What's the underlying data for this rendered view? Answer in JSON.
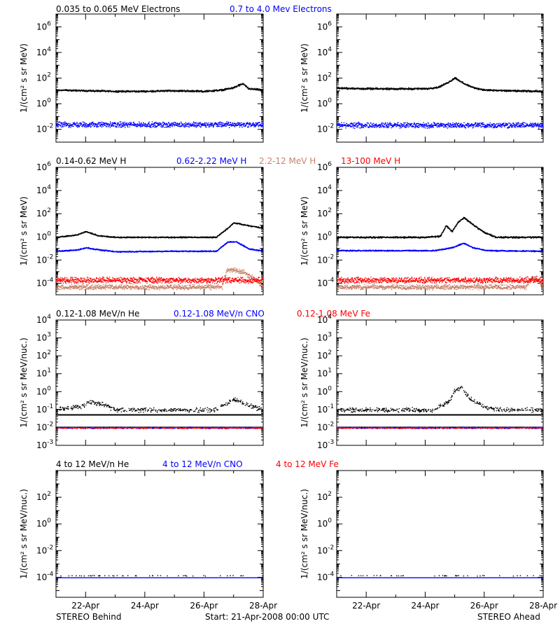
{
  "footer": {
    "left": "STEREO Behind",
    "center": "Start: 21-Apr-2008 00:00 UTC",
    "right": "STEREO Ahead"
  },
  "x_tick_labels": [
    "22-Apr",
    "24-Apr",
    "26-Apr",
    "28-Apr"
  ],
  "row_titles": [
    [
      {
        "text": "0.035 to 0.065 MeV Electrons",
        "color": "#000000"
      },
      {
        "text": "0.7 to 4.0 Mev Electrons",
        "color": "#0000ff"
      }
    ],
    [
      {
        "text": "0.14-0.62 MeV H",
        "color": "#000000"
      },
      {
        "text": "0.62-2.22 MeV H",
        "color": "#0000ff"
      },
      {
        "text": "2.2-12 MeV H",
        "color": "#c8826a"
      },
      {
        "text": "13-100 MeV H",
        "color": "#ff0000"
      }
    ],
    [
      {
        "text": "0.12-1.08 MeV/n He",
        "color": "#000000"
      },
      {
        "text": "0.12-1.08 MeV/n CNO",
        "color": "#0000ff"
      },
      {
        "text": "0.12-1.08 MeV Fe",
        "color": "#ff0000"
      }
    ],
    [
      {
        "text": "4 to 12 MeV/n He",
        "color": "#000000"
      },
      {
        "text": "4 to 12 MeV/n CNO",
        "color": "#0000ff"
      },
      {
        "text": "4 to 12 MeV Fe",
        "color": "#ff0000"
      }
    ]
  ],
  "chart_data": [
    {
      "id": "electrons-behind",
      "type": "scatter",
      "y_scale": "log",
      "ylabel": "1/(cm² s sr MeV)",
      "xlim": [
        "21-Apr-2008",
        "28-Apr-2008"
      ],
      "ylim_exp": [
        -3,
        7
      ],
      "y_tick_exps": [
        -2,
        0,
        2,
        4,
        6
      ],
      "series": [
        {
          "name": "0.035 to 0.065 MeV Electrons",
          "color": "#000000",
          "x": [
            0,
            1,
            2,
            3,
            4,
            5,
            5.6,
            6.0,
            6.3,
            6.5,
            7
          ],
          "log_y": [
            1.1,
            1.05,
            1.0,
            1.0,
            1.05,
            1.0,
            1.1,
            1.3,
            1.6,
            1.2,
            1.1
          ],
          "scatter": 0.08
        },
        {
          "name": "0.7 to 4.0 Mev Electrons",
          "color": "#0000ff",
          "x": [
            0,
            7
          ],
          "log_y": [
            -1.6,
            -1.6
          ],
          "scatter": 0.25
        }
      ]
    },
    {
      "id": "electrons-ahead",
      "type": "scatter",
      "y_scale": "log",
      "ylabel": "1/(cm² s sr MeV)",
      "xlim": [
        "21-Apr-2008",
        "28-Apr-2008"
      ],
      "ylim_exp": [
        -3,
        7
      ],
      "y_tick_exps": [
        -2,
        0,
        2,
        4,
        6
      ],
      "series": [
        {
          "name": "0.035 to 0.065 MeV Electrons",
          "color": "#000000",
          "x": [
            0,
            1,
            2,
            3,
            3.4,
            3.7,
            4.0,
            4.3,
            4.6,
            5.0,
            5.6,
            7
          ],
          "log_y": [
            1.25,
            1.2,
            1.2,
            1.2,
            1.3,
            1.6,
            2.05,
            1.6,
            1.3,
            1.1,
            1.05,
            1.0
          ],
          "scatter": 0.08
        },
        {
          "name": "0.7 to 4.0 Mev Electrons",
          "color": "#0000ff",
          "x": [
            0,
            7
          ],
          "log_y": [
            -1.65,
            -1.65
          ],
          "scatter": 0.25
        }
      ]
    },
    {
      "id": "protons-behind",
      "type": "scatter",
      "y_scale": "log",
      "ylabel": "1/(cm² s sr MeV)",
      "xlim": [
        "21-Apr-2008",
        "28-Apr-2008"
      ],
      "ylim_exp": [
        -5,
        6
      ],
      "y_tick_exps": [
        -4,
        -2,
        0,
        2,
        4,
        6
      ],
      "series": [
        {
          "name": "0.14-0.62 MeV H",
          "color": "#000000",
          "x": [
            0,
            0.7,
            1.0,
            1.4,
            2,
            4,
            5.4,
            5.8,
            6.0,
            6.3,
            6.6,
            7
          ],
          "log_y": [
            0.0,
            0.2,
            0.5,
            0.15,
            0.0,
            0.0,
            0.0,
            0.8,
            1.25,
            1.1,
            0.95,
            0.8
          ],
          "scatter": 0.06
        },
        {
          "name": "0.62-2.22 MeV H",
          "color": "#0000ff",
          "x": [
            0,
            0.7,
            1.0,
            1.5,
            2,
            4,
            5.4,
            5.8,
            6.1,
            6.5,
            7
          ],
          "log_y": [
            -1.2,
            -1.1,
            -0.9,
            -1.1,
            -1.25,
            -1.2,
            -1.2,
            -0.4,
            -0.4,
            -1.0,
            -1.2
          ],
          "scatter": 0.06
        },
        {
          "name": "2.2-12 MeV H",
          "color": "#c8826a",
          "x": [
            0,
            5.6,
            5.75,
            6.0,
            6.3,
            6.7,
            7
          ],
          "log_y": [
            -4.3,
            -4.3,
            -2.9,
            -2.8,
            -3.0,
            -3.6,
            -4.3
          ],
          "scatter": 0.25
        },
        {
          "name": "13-100 MeV H",
          "color": "#ff0000",
          "x": [
            0,
            7
          ],
          "log_y": [
            -3.7,
            -3.7
          ],
          "scatter": 0.3
        }
      ]
    },
    {
      "id": "protons-ahead",
      "type": "scatter",
      "y_scale": "log",
      "ylabel": "1/(cm² s sr MeV)",
      "xlim": [
        "21-Apr-2008",
        "28-Apr-2008"
      ],
      "ylim_exp": [
        -5,
        6
      ],
      "y_tick_exps": [
        -4,
        -2,
        0,
        2,
        4,
        6
      ],
      "series": [
        {
          "name": "0.14-0.62 MeV H",
          "color": "#000000",
          "x": [
            0,
            3,
            3.5,
            3.7,
            3.9,
            4.1,
            4.3,
            4.6,
            5.0,
            5.4,
            7
          ],
          "log_y": [
            0.0,
            0.0,
            0.1,
            1.0,
            0.5,
            1.3,
            1.7,
            1.1,
            0.4,
            0.0,
            0.0
          ],
          "scatter": 0.08
        },
        {
          "name": "0.62-2.22 MeV H",
          "color": "#0000ff",
          "x": [
            0,
            3.3,
            3.9,
            4.3,
            4.6,
            5.1,
            7
          ],
          "log_y": [
            -1.15,
            -1.15,
            -0.9,
            -0.5,
            -0.9,
            -1.15,
            -1.2
          ],
          "scatter": 0.06
        },
        {
          "name": "2.2-12 MeV H",
          "color": "#c8826a",
          "x": [
            0,
            6.4,
            6.6,
            6.8,
            7
          ],
          "log_y": [
            -4.3,
            -4.3,
            -3.5,
            -3.6,
            -4.3
          ],
          "scatter": 0.25
        },
        {
          "name": "13-100 MeV H",
          "color": "#ff0000",
          "x": [
            0,
            7
          ],
          "log_y": [
            -3.7,
            -3.7
          ],
          "scatter": 0.3
        }
      ]
    },
    {
      "id": "heavy-low-behind",
      "type": "scatter",
      "y_scale": "log",
      "ylabel": "1/(cm² s sr MeV/nuc.)",
      "xlim": [
        "21-Apr-2008",
        "28-Apr-2008"
      ],
      "ylim_exp": [
        -3,
        4
      ],
      "y_tick_exps": [
        -3,
        -2,
        -1,
        0,
        1,
        2,
        3,
        4
      ],
      "series": [
        {
          "name": "0.12-1.08 MeV/n He",
          "color": "#000000",
          "x": [
            0,
            0.8,
            1.2,
            1.6,
            2,
            5.3,
            5.7,
            6.0,
            6.5,
            7
          ],
          "log_y": [
            -1.0,
            -0.8,
            -0.55,
            -0.7,
            -1.0,
            -1.0,
            -0.7,
            -0.4,
            -0.75,
            -1.0
          ],
          "scatter": 0.15,
          "density": 0.45
        },
        {
          "name": "0.12-1.08 MeV/n CNO",
          "color": "#0000ff",
          "x": [
            0,
            7
          ],
          "log_y": [
            -2.0,
            -2.0
          ],
          "scatter": 0.05,
          "density": 0.6
        },
        {
          "name": "0.12-1.08 MeV Fe",
          "color": "#ff0000",
          "x": [
            0,
            7
          ],
          "log_y": [
            -2.0,
            -2.0
          ],
          "scatter": 0.04,
          "density": 0.4
        }
      ],
      "reference_lines": [
        {
          "log_y": -1.3,
          "color": "#000000"
        },
        {
          "log_y": -2.0,
          "color": "#000000"
        }
      ]
    },
    {
      "id": "heavy-low-ahead",
      "type": "scatter",
      "y_scale": "log",
      "ylabel": "1/(cm² s sr MeV/nuc.)",
      "xlim": [
        "21-Apr-2008",
        "28-Apr-2008"
      ],
      "ylim_exp": [
        -3,
        4
      ],
      "y_tick_exps": [
        -3,
        -2,
        -1,
        0,
        1,
        2,
        3,
        4
      ],
      "series": [
        {
          "name": "0.12-1.08 MeV/n He",
          "color": "#000000",
          "x": [
            0,
            3.3,
            3.8,
            4.0,
            4.2,
            4.4,
            4.6,
            5.0,
            5.5,
            7
          ],
          "log_y": [
            -1.0,
            -1.0,
            -0.5,
            0.1,
            0.3,
            -0.2,
            -0.5,
            -0.8,
            -1.0,
            -1.0
          ],
          "scatter": 0.15,
          "density": 0.45
        },
        {
          "name": "0.12-1.08 MeV/n CNO",
          "color": "#0000ff",
          "x": [
            0,
            7
          ],
          "log_y": [
            -2.0,
            -2.0
          ],
          "scatter": 0.05,
          "density": 0.6
        },
        {
          "name": "0.12-1.08 MeV Fe",
          "color": "#ff0000",
          "x": [
            0,
            7
          ],
          "log_y": [
            -2.0,
            -2.0
          ],
          "scatter": 0.04,
          "density": 0.35
        }
      ],
      "reference_lines": [
        {
          "log_y": -1.3,
          "color": "#000000"
        },
        {
          "log_y": -2.0,
          "color": "#000000"
        }
      ]
    },
    {
      "id": "heavy-high-behind",
      "type": "scatter",
      "y_scale": "log",
      "ylabel": "1/(cm² s sr MeV/nuc.)",
      "xlim": [
        "21-Apr-2008",
        "28-Apr-2008"
      ],
      "ylim_exp": [
        -5.5,
        4
      ],
      "y_tick_exps": [
        -4,
        -2,
        0,
        2
      ],
      "series": [
        {
          "name": "4 to 12 MeV/n He",
          "color": "#000000",
          "x": [
            0,
            7
          ],
          "log_y": [
            -3.85,
            -3.85
          ],
          "scatter": 0.03,
          "density": 0.05
        },
        {
          "name": "4 to 12 MeV/n CNO",
          "color": "#0000ff",
          "x": [
            0,
            7
          ],
          "log_y": [
            -4.0,
            -4.0
          ],
          "scatter": 0.0,
          "density": 0.9
        },
        {
          "name": "4 to 12 MeV Fe",
          "color": "#ff0000",
          "x": [
            0,
            7
          ],
          "log_y": [
            -5.0,
            -5.0
          ],
          "scatter": 0.0,
          "density": 0.0
        }
      ]
    },
    {
      "id": "heavy-high-ahead",
      "type": "scatter",
      "y_scale": "log",
      "ylabel": "1/(cm² s sr MeV/nuc.)",
      "xlim": [
        "21-Apr-2008",
        "28-Apr-2008"
      ],
      "ylim_exp": [
        -5.5,
        4
      ],
      "y_tick_exps": [
        -4,
        -2,
        0,
        2
      ],
      "series": [
        {
          "name": "4 to 12 MeV/n He",
          "color": "#000000",
          "x": [
            0,
            7
          ],
          "log_y": [
            -3.85,
            -3.85
          ],
          "scatter": 0.03,
          "density": 0.05
        },
        {
          "name": "4 to 12 MeV/n CNO",
          "color": "#0000ff",
          "x": [
            0,
            7
          ],
          "log_y": [
            -4.0,
            -4.0
          ],
          "scatter": 0.0,
          "density": 0.9
        },
        {
          "name": "4 to 12 MeV Fe",
          "color": "#ff0000",
          "x": [
            0,
            7
          ],
          "log_y": [
            -5.0,
            -5.0
          ],
          "scatter": 0.0,
          "density": 0.0
        }
      ]
    }
  ]
}
